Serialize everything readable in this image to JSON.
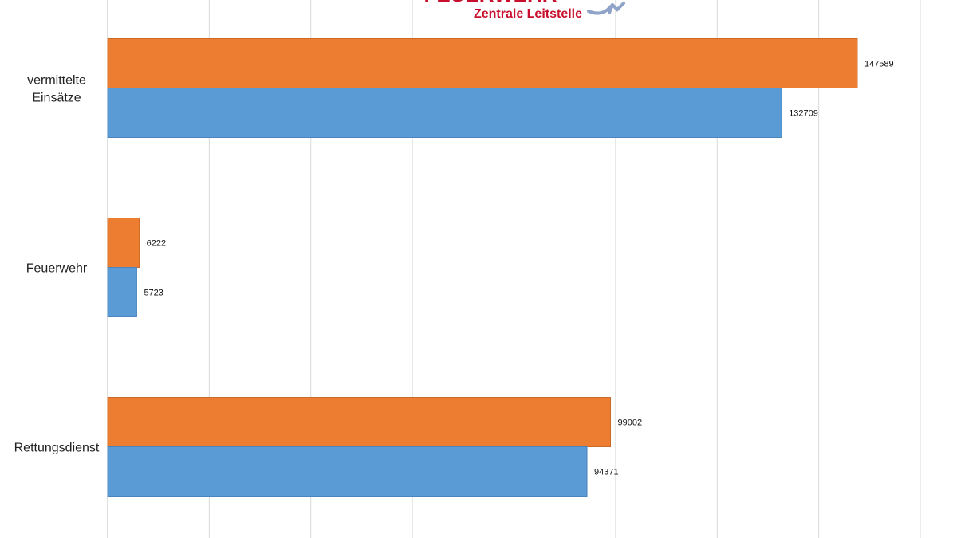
{
  "logo": {
    "title": "FEUERWEHR",
    "subtitle": "Zentrale Leitstelle"
  },
  "chart_data": {
    "type": "bar",
    "orientation": "horizontal",
    "categories": [
      "vermittelte Einsätze",
      "Feuerwehr",
      "Rettungsdienst"
    ],
    "category_lines": [
      [
        "vermittelte",
        "Einsätze"
      ],
      [
        "Feuerwehr"
      ],
      [
        "Rettungsdienst"
      ]
    ],
    "series": [
      {
        "color": "#ED7D31",
        "values": [
          147589,
          6222,
          99002
        ]
      },
      {
        "color": "#5B9BD5",
        "values": [
          132709,
          5723,
          94371
        ]
      }
    ],
    "xlim": [
      0,
      160000
    ],
    "grid": true,
    "legend": "none"
  }
}
